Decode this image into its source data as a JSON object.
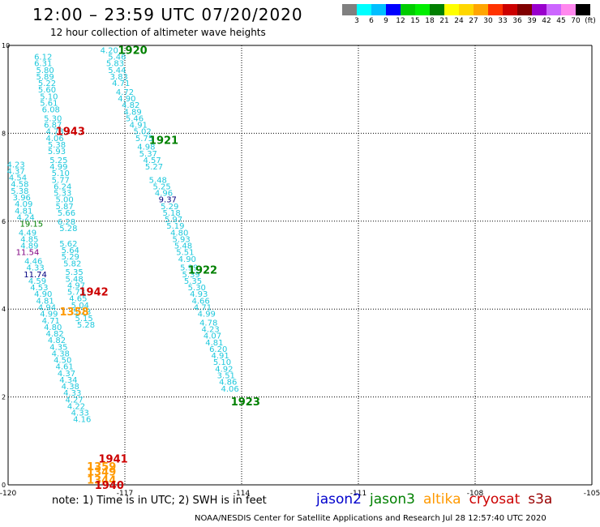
{
  "header": {
    "title": "12:00 – 23:59 UTC 07/20/2020",
    "subtitle": "12 hour collection of altimeter wave heights"
  },
  "color_scale": {
    "labels": [
      "3",
      "6",
      "9",
      "12",
      "15",
      "18",
      "21",
      "24",
      "27",
      "30",
      "33",
      "36",
      "39",
      "42",
      "45",
      "70",
      "(ft)"
    ],
    "colors": [
      "#808080",
      "#00ffff",
      "#00bfff",
      "#0000ff",
      "#00cc00",
      "#00ee00",
      "#008000",
      "#ffff00",
      "#ffd700",
      "#ffa500",
      "#ff3300",
      "#cc0000",
      "#800000",
      "#9900cc",
      "#cc66ff",
      "#ff88ee",
      "#000000"
    ]
  },
  "note": "note: 1) Time is in UTC; 2) SWH is in feet",
  "footer": "NOAA/NESDIS Center for Satellite Applications and Research    Jul 28 12:57:40 UTC 2020",
  "satellites": [
    {
      "name": "jason2",
      "color": "#0000cc"
    },
    {
      "name": "jason3",
      "color": "#008000"
    },
    {
      "name": "altika",
      "color": "#ff9900"
    },
    {
      "name": "cryosat",
      "color": "#cc0000"
    },
    {
      "name": "s3a",
      "color": "#990000"
    }
  ],
  "chart_data": {
    "type": "scatter",
    "title": "12:00 – 23:59 UTC 07/20/2020",
    "subtitle": "12 hour collection of altimeter wave heights",
    "xlim": [
      -120,
      -105
    ],
    "ylim": [
      0,
      10
    ],
    "x_ticks": [
      -120,
      -117,
      -114,
      -111,
      -108,
      -105
    ],
    "x_tick_labels": [
      "-120",
      "-117",
      "-114",
      "-111",
      "-108",
      "-105"
    ],
    "y_ticks": [
      0,
      2,
      4,
      6,
      8,
      10
    ],
    "y_tick_labels": [
      "0",
      "2",
      "4",
      "6",
      "8",
      "10"
    ],
    "grid": true,
    "time_labels": [
      {
        "text": "1920",
        "x": -116.8,
        "y": 9.9,
        "color": "#008000"
      },
      {
        "text": "1943",
        "x": -118.4,
        "y": 8.05,
        "color": "#cc0000"
      },
      {
        "text": "1921",
        "x": -116.0,
        "y": 7.85,
        "color": "#008000"
      },
      {
        "text": "1922",
        "x": -115.0,
        "y": 4.9,
        "color": "#008000"
      },
      {
        "text": "1942",
        "x": -117.8,
        "y": 4.4,
        "color": "#cc0000"
      },
      {
        "text": "1358",
        "x": -118.3,
        "y": 3.95,
        "color": "#ff9900"
      },
      {
        "text": "1923",
        "x": -113.9,
        "y": 1.9,
        "color": "#008000"
      },
      {
        "text": "1941",
        "x": -117.3,
        "y": 0.6,
        "color": "#cc0000"
      },
      {
        "text": "1359",
        "x": -117.6,
        "y": 0.42,
        "color": "#ff9900"
      },
      {
        "text": "1349",
        "x": -117.6,
        "y": 0.3,
        "color": "#ff9900"
      },
      {
        "text": "1344",
        "x": -117.6,
        "y": 0.12,
        "color": "#ff9900"
      },
      {
        "text": "1940",
        "x": -117.4,
        "y": 0.0,
        "color": "#cc0000"
      }
    ],
    "series": [
      {
        "name": "jason3",
        "color": "#1ec8dc",
        "points": [
          {
            "x": -117.4,
            "y": 9.9,
            "v": "4.20"
          },
          {
            "x": -117.2,
            "y": 9.75,
            "v": "5.46"
          },
          {
            "x": -117.25,
            "y": 9.6,
            "v": "5.83"
          },
          {
            "x": -117.2,
            "y": 9.45,
            "v": "5.44"
          },
          {
            "x": -117.15,
            "y": 9.3,
            "v": "3.83"
          },
          {
            "x": -117.1,
            "y": 9.15,
            "v": "4.71"
          },
          {
            "x": -117.0,
            "y": 8.95,
            "v": "4.72"
          },
          {
            "x": -116.95,
            "y": 8.8,
            "v": "4.90"
          },
          {
            "x": -116.85,
            "y": 8.65,
            "v": "4.82"
          },
          {
            "x": -116.8,
            "y": 8.5,
            "v": "4.89"
          },
          {
            "x": -116.75,
            "y": 8.35,
            "v": "5.46"
          },
          {
            "x": -116.65,
            "y": 8.2,
            "v": "4.91"
          },
          {
            "x": -116.55,
            "y": 8.05,
            "v": "5.02"
          },
          {
            "x": -116.5,
            "y": 7.9,
            "v": "5.75"
          },
          {
            "x": -116.45,
            "y": 7.7,
            "v": "4.98"
          },
          {
            "x": -116.4,
            "y": 7.55,
            "v": "5.37"
          },
          {
            "x": -116.3,
            "y": 7.4,
            "v": "4.57"
          },
          {
            "x": -116.25,
            "y": 7.25,
            "v": "5.27"
          },
          {
            "x": -116.15,
            "y": 6.95,
            "v": "5.48"
          },
          {
            "x": -116.05,
            "y": 6.8,
            "v": "5.25"
          },
          {
            "x": -116.0,
            "y": 6.65,
            "v": "4.96"
          },
          {
            "x": -115.85,
            "y": 6.35,
            "v": "5.29"
          },
          {
            "x": -115.8,
            "y": 6.2,
            "v": "5.18"
          },
          {
            "x": -115.75,
            "y": 6.05,
            "v": "5.97"
          },
          {
            "x": -115.7,
            "y": 5.9,
            "v": "5.19"
          },
          {
            "x": -115.6,
            "y": 5.75,
            "v": "4.80"
          },
          {
            "x": -115.55,
            "y": 5.6,
            "v": "5.93"
          },
          {
            "x": -115.5,
            "y": 5.45,
            "v": "5.48"
          },
          {
            "x": -115.45,
            "y": 5.3,
            "v": "5.51"
          },
          {
            "x": -115.4,
            "y": 5.15,
            "v": "4.90"
          },
          {
            "x": -115.35,
            "y": 4.95,
            "v": "5.99"
          },
          {
            "x": -115.3,
            "y": 4.8,
            "v": "5.39"
          },
          {
            "x": -115.25,
            "y": 4.65,
            "v": "5.35"
          },
          {
            "x": -115.15,
            "y": 4.5,
            "v": "5.30"
          },
          {
            "x": -115.1,
            "y": 4.35,
            "v": "4.93"
          },
          {
            "x": -115.05,
            "y": 4.2,
            "v": "4.66"
          },
          {
            "x": -115.0,
            "y": 4.05,
            "v": "4.71"
          },
          {
            "x": -114.9,
            "y": 3.9,
            "v": "4.99"
          },
          {
            "x": -114.85,
            "y": 3.7,
            "v": "4.78"
          },
          {
            "x": -114.8,
            "y": 3.55,
            "v": "4.23"
          },
          {
            "x": -114.75,
            "y": 3.4,
            "v": "4.07"
          },
          {
            "x": -114.7,
            "y": 3.25,
            "v": "4.81"
          },
          {
            "x": -114.6,
            "y": 3.1,
            "v": "6.20"
          },
          {
            "x": -114.55,
            "y": 2.95,
            "v": "4.91"
          },
          {
            "x": -114.5,
            "y": 2.8,
            "v": "5.10"
          },
          {
            "x": -114.45,
            "y": 2.65,
            "v": "4.92"
          },
          {
            "x": -114.4,
            "y": 2.5,
            "v": "3.51"
          },
          {
            "x": -114.35,
            "y": 2.35,
            "v": "4.86"
          },
          {
            "x": -114.3,
            "y": 2.2,
            "v": "4.06"
          }
        ]
      },
      {
        "name": "cryosat",
        "color": "#1ec8dc",
        "points": [
          {
            "x": -119.1,
            "y": 9.75,
            "v": "6.12"
          },
          {
            "x": -119.1,
            "y": 9.6,
            "v": "6.31"
          },
          {
            "x": -119.05,
            "y": 9.45,
            "v": "5.80"
          },
          {
            "x": -119.05,
            "y": 9.3,
            "v": "5.89"
          },
          {
            "x": -119.0,
            "y": 9.15,
            "v": "5.22"
          },
          {
            "x": -119.0,
            "y": 9.0,
            "v": "5.60"
          },
          {
            "x": -118.95,
            "y": 8.85,
            "v": "5.10"
          },
          {
            "x": -118.95,
            "y": 8.7,
            "v": "5.61"
          },
          {
            "x": -118.9,
            "y": 8.55,
            "v": "6.08"
          },
          {
            "x": -118.85,
            "y": 8.35,
            "v": "5.30"
          },
          {
            "x": -118.85,
            "y": 8.2,
            "v": "6.87"
          },
          {
            "x": -118.8,
            "y": 8.05,
            "v": "4.73"
          },
          {
            "x": -118.8,
            "y": 7.9,
            "v": "4.06"
          },
          {
            "x": -118.75,
            "y": 7.75,
            "v": "5.38"
          },
          {
            "x": -118.75,
            "y": 7.6,
            "v": "5.93"
          },
          {
            "x": -118.7,
            "y": 7.4,
            "v": "5.25"
          },
          {
            "x": -118.7,
            "y": 7.25,
            "v": "4.99"
          },
          {
            "x": -118.65,
            "y": 7.1,
            "v": "5.10"
          },
          {
            "x": -118.65,
            "y": 6.95,
            "v": "5.77"
          },
          {
            "x": -118.6,
            "y": 6.8,
            "v": "6.24"
          },
          {
            "x": -118.6,
            "y": 6.65,
            "v": "5.33"
          },
          {
            "x": -118.55,
            "y": 6.5,
            "v": "5.00"
          },
          {
            "x": -118.55,
            "y": 6.35,
            "v": "5.87"
          },
          {
            "x": -118.5,
            "y": 6.2,
            "v": "5.66"
          },
          {
            "x": -118.5,
            "y": 6.0,
            "v": "6.28"
          },
          {
            "x": -118.45,
            "y": 5.85,
            "v": "5.28"
          },
          {
            "x": -118.45,
            "y": 5.5,
            "v": "5.62"
          },
          {
            "x": -118.4,
            "y": 5.35,
            "v": "5.64"
          },
          {
            "x": -118.4,
            "y": 5.2,
            "v": "5.29"
          },
          {
            "x": -118.35,
            "y": 5.05,
            "v": "5.82"
          },
          {
            "x": -118.3,
            "y": 4.85,
            "v": "5.35"
          },
          {
            "x": -118.3,
            "y": 4.7,
            "v": "5.48"
          },
          {
            "x": -118.25,
            "y": 4.55,
            "v": "4.97"
          },
          {
            "x": -118.25,
            "y": 4.4,
            "v": "5.73"
          },
          {
            "x": -118.2,
            "y": 4.25,
            "v": "4.65"
          },
          {
            "x": -118.15,
            "y": 4.1,
            "v": "5.04"
          },
          {
            "x": -118.1,
            "y": 3.95,
            "v": "5.23"
          },
          {
            "x": -118.05,
            "y": 3.8,
            "v": "5.15"
          },
          {
            "x": -118.0,
            "y": 3.65,
            "v": "5.28"
          }
        ]
      },
      {
        "name": "altika",
        "color": "#1ec8dc",
        "points": [
          {
            "x": -119.8,
            "y": 7.3,
            "v": "4.23"
          },
          {
            "x": -119.8,
            "y": 7.15,
            "v": "4.37"
          },
          {
            "x": -119.75,
            "y": 7.0,
            "v": "4.54"
          },
          {
            "x": -119.7,
            "y": 6.85,
            "v": "4.58"
          },
          {
            "x": -119.7,
            "y": 6.7,
            "v": "5.38"
          },
          {
            "x": -119.65,
            "y": 6.55,
            "v": "3.96"
          },
          {
            "x": -119.6,
            "y": 6.4,
            "v": "4.09"
          },
          {
            "x": -119.6,
            "y": 6.25,
            "v": "4.81"
          },
          {
            "x": -119.55,
            "y": 6.1,
            "v": "4.24"
          },
          {
            "x": -119.5,
            "y": 5.75,
            "v": "4.49"
          },
          {
            "x": -119.45,
            "y": 5.6,
            "v": "4.85"
          },
          {
            "x": -119.45,
            "y": 5.45,
            "v": "4.89"
          },
          {
            "x": -119.35,
            "y": 5.1,
            "v": "4.46"
          },
          {
            "x": -119.3,
            "y": 4.95,
            "v": "4.33"
          },
          {
            "x": -119.25,
            "y": 4.65,
            "v": "4.59"
          },
          {
            "x": -119.2,
            "y": 4.5,
            "v": "4.53"
          },
          {
            "x": -119.1,
            "y": 4.35,
            "v": "4.90"
          },
          {
            "x": -119.05,
            "y": 4.2,
            "v": "4.81"
          },
          {
            "x": -119.0,
            "y": 4.05,
            "v": "4.94"
          },
          {
            "x": -118.95,
            "y": 3.9,
            "v": "4.99"
          },
          {
            "x": -118.9,
            "y": 3.75,
            "v": "4.71"
          },
          {
            "x": -118.85,
            "y": 3.6,
            "v": "4.80"
          },
          {
            "x": -118.8,
            "y": 3.45,
            "v": "4.82"
          },
          {
            "x": -118.75,
            "y": 3.3,
            "v": "4.82"
          },
          {
            "x": -118.7,
            "y": 3.15,
            "v": "4.35"
          },
          {
            "x": -118.65,
            "y": 3.0,
            "v": "4.38"
          },
          {
            "x": -118.6,
            "y": 2.85,
            "v": "4.50"
          },
          {
            "x": -118.55,
            "y": 2.7,
            "v": "4.61"
          },
          {
            "x": -118.5,
            "y": 2.55,
            "v": "4.37"
          },
          {
            "x": -118.45,
            "y": 2.4,
            "v": "4.34"
          },
          {
            "x": -118.4,
            "y": 2.25,
            "v": "4.38"
          },
          {
            "x": -118.35,
            "y": 2.1,
            "v": "4.33"
          },
          {
            "x": -118.3,
            "y": 1.95,
            "v": "4.27"
          },
          {
            "x": -118.25,
            "y": 1.8,
            "v": "4.22"
          },
          {
            "x": -118.15,
            "y": 1.65,
            "v": "4.33"
          },
          {
            "x": -118.1,
            "y": 1.5,
            "v": "4.16"
          }
        ]
      },
      {
        "name": "highlight",
        "color": "#1ec8dc",
        "points": [
          {
            "x": -119.4,
            "y": 5.95,
            "v": "19.15",
            "color": "#008000"
          },
          {
            "x": -115.9,
            "y": 6.5,
            "v": "9.37",
            "color": "#000080"
          },
          {
            "x": -119.5,
            "y": 5.3,
            "v": "11.54",
            "color": "#800080"
          },
          {
            "x": -119.3,
            "y": 4.8,
            "v": "11.74",
            "color": "#000080"
          }
        ]
      }
    ]
  }
}
